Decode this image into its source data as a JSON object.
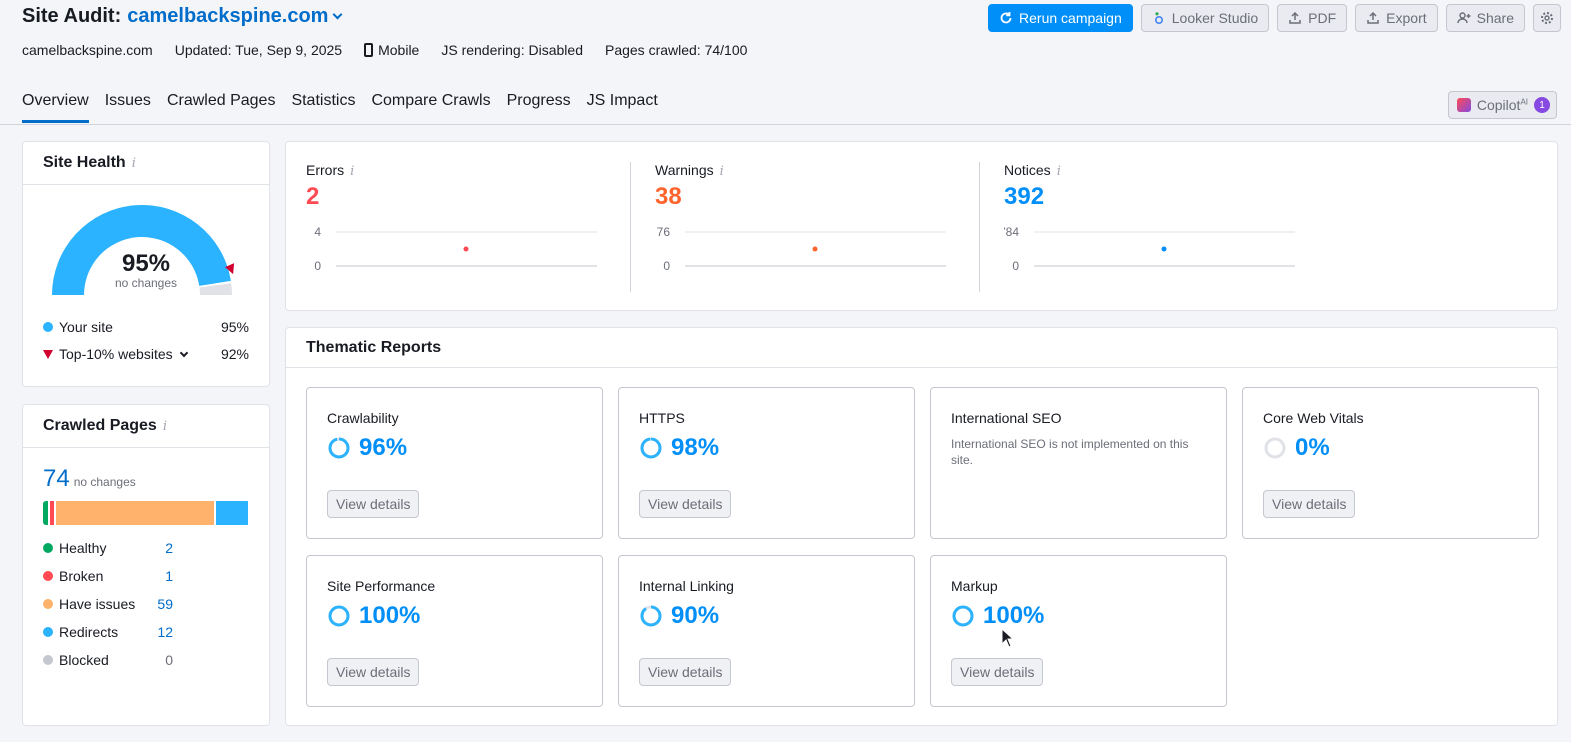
{
  "header": {
    "title_prefix": "Site Audit:",
    "domain": "camelbackspine.com",
    "meta": {
      "site": "camelbackspine.com",
      "updated": "Updated: Tue, Sep 9, 2025",
      "device": "Mobile",
      "js_rendering": "JS rendering: Disabled",
      "pages_crawled": "Pages crawled: 74/100"
    },
    "actions": {
      "rerun": "Rerun campaign",
      "looker": "Looker Studio",
      "pdf": "PDF",
      "export": "Export",
      "share": "Share"
    }
  },
  "tabs": [
    "Overview",
    "Issues",
    "Crawled Pages",
    "Statistics",
    "Compare Crawls",
    "Progress",
    "JS Impact"
  ],
  "active_tab": "Overview",
  "copilot": {
    "label": "Copilot",
    "sup": "AI",
    "badge": "1"
  },
  "site_health": {
    "title": "Site Health",
    "percent_label": "95%",
    "percent": 95,
    "sub": "no changes",
    "your_site_label": "Your site",
    "your_site_value": "95%",
    "top10_label": "Top-10% websites",
    "top10_value": "92%",
    "top10_percent": 92,
    "colors": {
      "site": "#2bb3ff",
      "top10": "#d1002f",
      "track": "#e0e2e8"
    }
  },
  "crawled_pages": {
    "title": "Crawled Pages",
    "total": "74",
    "sub": "no changes",
    "rows": [
      {
        "label": "Healthy",
        "value": "2",
        "count": 2,
        "color": "#00a95f"
      },
      {
        "label": "Broken",
        "value": "1",
        "count": 1,
        "color": "#ff4953"
      },
      {
        "label": "Have issues",
        "value": "59",
        "count": 59,
        "color": "#ffb26b"
      },
      {
        "label": "Redirects",
        "value": "12",
        "count": 12,
        "color": "#2bb3ff"
      },
      {
        "label": "Blocked",
        "value": "0",
        "count": 0,
        "color": "#c4c7cf"
      }
    ]
  },
  "issues": [
    {
      "label": "Errors",
      "value": "2",
      "color": "#ff4953",
      "ymax": "4",
      "ymin": "0",
      "point": 2,
      "max": 4
    },
    {
      "label": "Warnings",
      "value": "38",
      "color": "#ff642d",
      "ymax": "76",
      "ymin": "0",
      "point": 38,
      "max": 76
    },
    {
      "label": "Notices",
      "value": "392",
      "color": "#008ff8",
      "ymax": "784",
      "ymin": "0",
      "point": 392,
      "max": 784
    }
  ],
  "thematic": {
    "title": "Thematic Reports",
    "view_details": "View details",
    "reports": [
      {
        "title": "Crawlability",
        "pct": "96%",
        "value": 96
      },
      {
        "title": "HTTPS",
        "pct": "98%",
        "value": 98
      },
      {
        "title": "International SEO",
        "note": "International SEO is not implemented on this site."
      },
      {
        "title": "Core Web Vitals",
        "pct": "0%",
        "value": 0
      },
      {
        "title": "Site Performance",
        "pct": "100%",
        "value": 100
      },
      {
        "title": "Internal Linking",
        "pct": "90%",
        "value": 90
      },
      {
        "title": "Markup",
        "pct": "100%",
        "value": 100
      }
    ]
  }
}
